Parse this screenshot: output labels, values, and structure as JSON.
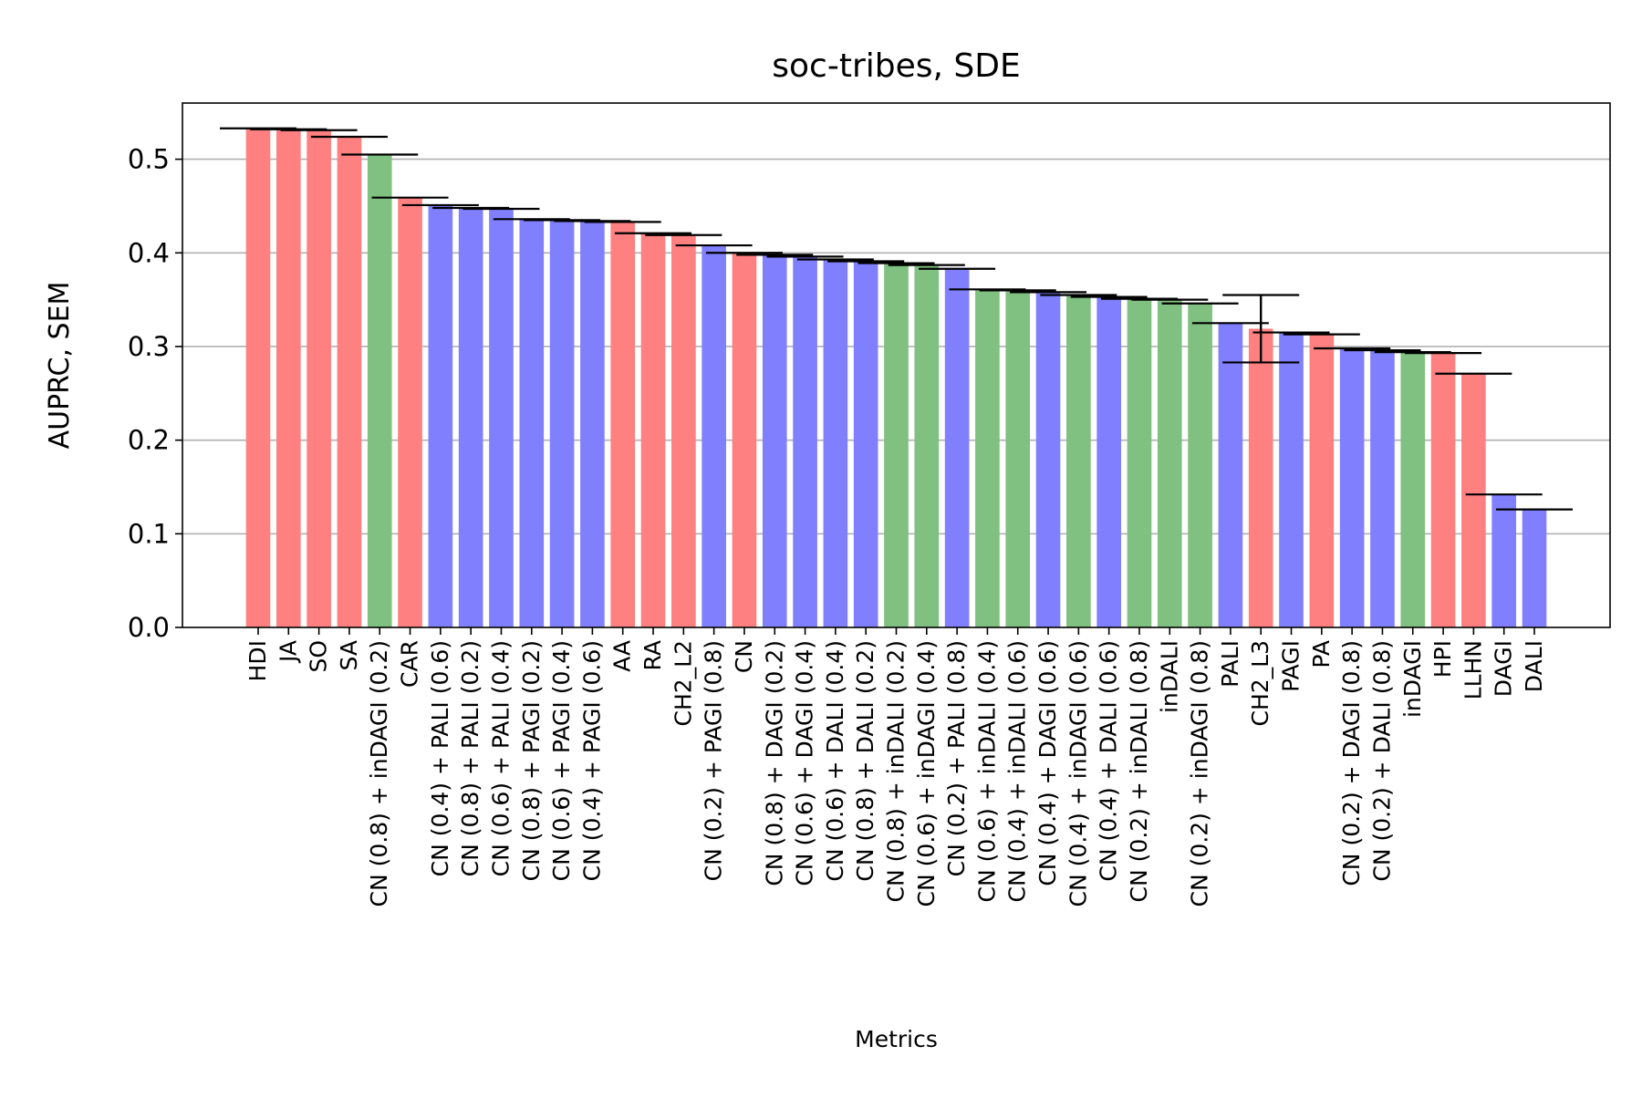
{
  "chart_data": {
    "type": "bar",
    "title": "soc-tribes, SDE",
    "xlabel": "Metrics",
    "ylabel": "AUPRC, SEM",
    "ylim": [
      0,
      0.56
    ],
    "yticks": [
      0.0,
      0.1,
      0.2,
      0.3,
      0.4,
      0.5
    ],
    "ytick_labels": [
      "0.0",
      "0.1",
      "0.2",
      "0.3",
      "0.4",
      "0.5"
    ],
    "grid": "horizontal",
    "colors": {
      "red": "#ff8080",
      "blue": "#8080ff",
      "green": "#80c080"
    },
    "categories": [
      "HDI",
      "JA",
      "SO",
      "SA",
      "CN (0.8) + inDAGI (0.2)",
      "CAR",
      "CN (0.4) + PALI (0.6)",
      "CN (0.8) + PALI (0.2)",
      "CN (0.6) + PALI (0.4)",
      "CN (0.8) + PAGI (0.2)",
      "CN (0.6) + PAGI (0.4)",
      "CN (0.4) + PAGI (0.6)",
      "AA",
      "RA",
      "CH2_L2",
      "CN (0.2) + PAGI (0.8)",
      "CN",
      "CN (0.8) + DAGI (0.2)",
      "CN (0.6) + DAGI (0.4)",
      "CN (0.6) + DALI (0.4)",
      "CN (0.8) + DALI (0.2)",
      "CN (0.8) + inDALI (0.2)",
      "CN (0.6) + inDAGI (0.4)",
      "CN (0.2) + PALI (0.8)",
      "CN (0.6) + inDALI (0.4)",
      "CN (0.4) + inDALI (0.6)",
      "CN (0.4) + DAGI (0.6)",
      "CN (0.4) + inDAGI (0.6)",
      "CN (0.4) + DALI (0.6)",
      "CN (0.2) + inDALI (0.8)",
      "inDALI",
      "CN (0.2) + inDAGI (0.8)",
      "PALI",
      "CH2_L3",
      "PAGI",
      "PA",
      "CN (0.2) + DAGI (0.8)",
      "CN (0.2) + DALI (0.8)",
      "inDAGI",
      "HPI",
      "LLHN",
      "DAGI",
      "DALI"
    ],
    "values": [
      0.533,
      0.532,
      0.531,
      0.524,
      0.505,
      0.459,
      0.451,
      0.448,
      0.447,
      0.436,
      0.435,
      0.434,
      0.433,
      0.421,
      0.419,
      0.408,
      0.4,
      0.398,
      0.396,
      0.393,
      0.391,
      0.389,
      0.387,
      0.383,
      0.361,
      0.36,
      0.358,
      0.355,
      0.353,
      0.351,
      0.35,
      0.346,
      0.325,
      0.319,
      0.315,
      0.313,
      0.298,
      0.296,
      0.294,
      0.293,
      0.271,
      0.142,
      0.126
    ],
    "errors": [
      0.0,
      0.0,
      0.0,
      0.0,
      0.0,
      0.0,
      0.0,
      0.0,
      0.0,
      0.0,
      0.0,
      0.0,
      0.0,
      0.0,
      0.0,
      0.0,
      0.0,
      0.0,
      0.0,
      0.0,
      0.0,
      0.0,
      0.0,
      0.0,
      0.0,
      0.0,
      0.0,
      0.0,
      0.0,
      0.0,
      0.0,
      0.0,
      0.0,
      0.036,
      0.0,
      0.0,
      0.0,
      0.0,
      0.0,
      0.0,
      0.0,
      0.0,
      0.0
    ],
    "bar_colors": [
      "red",
      "red",
      "red",
      "red",
      "green",
      "red",
      "blue",
      "blue",
      "blue",
      "blue",
      "blue",
      "blue",
      "red",
      "red",
      "red",
      "blue",
      "red",
      "blue",
      "blue",
      "blue",
      "blue",
      "green",
      "green",
      "blue",
      "green",
      "green",
      "blue",
      "green",
      "blue",
      "green",
      "green",
      "green",
      "blue",
      "red",
      "blue",
      "red",
      "blue",
      "blue",
      "green",
      "red",
      "red",
      "blue",
      "blue"
    ]
  }
}
